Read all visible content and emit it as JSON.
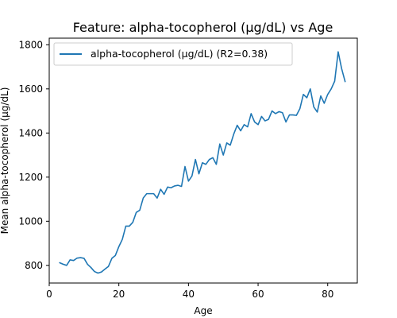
{
  "chart_data": {
    "type": "line",
    "title": "Feature: alpha-tocopherol (µg/dL) vs Age",
    "xlabel": "Age",
    "ylabel": "Mean alpha-tocopherol (µg/dL)",
    "xlim": [
      0,
      88.5
    ],
    "ylim": [
      720,
      1830
    ],
    "xticks": [
      0,
      20,
      40,
      60,
      80
    ],
    "yticks": [
      800,
      1000,
      1200,
      1400,
      1600,
      1800
    ],
    "grid": false,
    "legend_position": "upper-left",
    "series": [
      {
        "name": "alpha-tocopherol (µg/dL) (R2=0.38)",
        "color": "#1f77b4",
        "x": [
          3,
          4,
          5,
          6,
          7,
          8,
          9,
          10,
          11,
          12,
          13,
          14,
          15,
          16,
          17,
          18,
          19,
          20,
          21,
          22,
          23,
          24,
          25,
          26,
          27,
          28,
          29,
          30,
          31,
          32,
          33,
          34,
          35,
          36,
          37,
          38,
          39,
          40,
          41,
          42,
          43,
          44,
          45,
          46,
          47,
          48,
          49,
          50,
          51,
          52,
          53,
          54,
          55,
          56,
          57,
          58,
          59,
          60,
          61,
          62,
          63,
          64,
          65,
          66,
          67,
          68,
          69,
          70,
          71,
          72,
          73,
          74,
          75,
          76,
          77,
          78,
          79,
          80,
          81,
          82,
          83,
          84,
          85
        ],
        "y": [
          812,
          805,
          800,
          825,
          822,
          833,
          835,
          832,
          805,
          790,
          772,
          765,
          770,
          783,
          795,
          832,
          845,
          885,
          918,
          978,
          978,
          995,
          1040,
          1050,
          1105,
          1125,
          1125,
          1125,
          1105,
          1145,
          1122,
          1155,
          1152,
          1160,
          1163,
          1158,
          1248,
          1182,
          1205,
          1280,
          1215,
          1265,
          1258,
          1280,
          1288,
          1258,
          1350,
          1300,
          1355,
          1345,
          1395,
          1435,
          1410,
          1438,
          1428,
          1488,
          1450,
          1438,
          1475,
          1455,
          1462,
          1500,
          1488,
          1497,
          1492,
          1450,
          1482,
          1482,
          1480,
          1510,
          1575,
          1560,
          1600,
          1518,
          1495,
          1568,
          1535,
          1575,
          1600,
          1635,
          1768,
          1692,
          1633
        ]
      }
    ]
  }
}
